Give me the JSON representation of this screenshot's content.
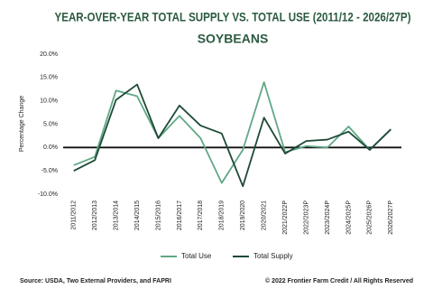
{
  "chart_data": {
    "type": "line",
    "title": "YEAR-OVER-YEAR TOTAL SUPPLY VS. TOTAL USE (2011/12 - 2026/27P)",
    "subtitle": "SOYBEANS",
    "y_label": "Percentage Change",
    "categories": [
      "2011/2012",
      "2012/2013",
      "2013/2014",
      "2014/2015",
      "2015/2016",
      "2016/2017",
      "2017/2018",
      "2018/2019",
      "2019/2020",
      "2020/2021",
      "2021/2022P",
      "2022/2023P",
      "2023/2024P",
      "2024/2025P",
      "2025/2026P",
      "2026/2027P"
    ],
    "series": [
      {
        "name": "Total Use",
        "color": "#5fa886",
        "values": [
          -3.8,
          -2,
          12.2,
          11,
          2,
          6.8,
          2,
          -7.6,
          -0.5,
          14,
          -1,
          0.3,
          0,
          4.5,
          -0.5,
          3.9
        ]
      },
      {
        "name": "Total Supply",
        "color": "#1e4a36",
        "values": [
          -5,
          -2.7,
          10.2,
          13.5,
          2,
          9,
          4.7,
          3,
          -8.3,
          6.4,
          -1.3,
          1.4,
          1.7,
          3.4,
          -0.5,
          3.9
        ]
      }
    ],
    "ylim": [
      -10,
      20
    ],
    "yticks": [
      {
        "value": -10,
        "label": "-10.0%"
      },
      {
        "value": -5,
        "label": "-5.0%"
      },
      {
        "value": 0,
        "label": "0.0%"
      },
      {
        "value": 5,
        "label": "5.0%"
      },
      {
        "value": 10,
        "label": "10.0%"
      },
      {
        "value": 15,
        "label": "15.0%"
      },
      {
        "value": 20,
        "label": "20.0%"
      }
    ],
    "grid": false,
    "zero_line": true,
    "legend": "bottom",
    "source": "Source: USDA, Two External Providers, and FAPRI",
    "credit": "© 2022 Frontier Farm Credit / All Rights Reserved"
  }
}
